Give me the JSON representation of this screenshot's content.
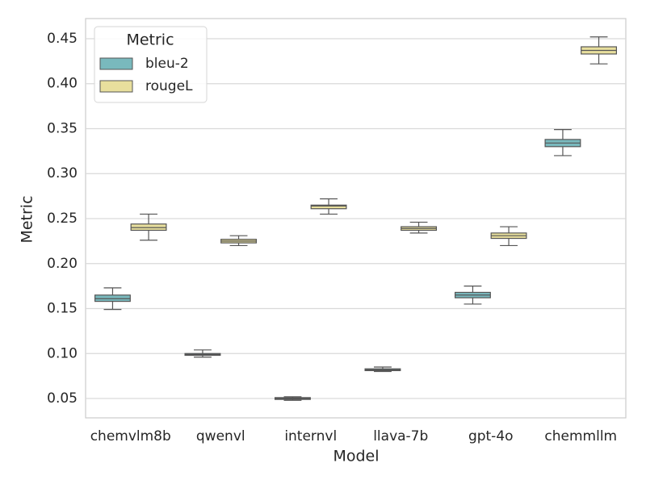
{
  "chart_data": {
    "type": "box",
    "x_label": "Model",
    "y_label": "Metric",
    "legend_title": "Metric",
    "categories": [
      "chemvlm8b",
      "qwenvl",
      "internvl",
      "llava-7b",
      "gpt-4o",
      "chemmllm"
    ],
    "series": [
      {
        "name": "bleu-2",
        "color": "#79b9bd",
        "min": [
          0.149,
          0.096,
          0.048,
          0.08,
          0.155,
          0.32
        ],
        "q1": [
          0.158,
          0.098,
          0.049,
          0.081,
          0.162,
          0.33
        ],
        "median": [
          0.161,
          0.099,
          0.05,
          0.082,
          0.165,
          0.334
        ],
        "q3": [
          0.165,
          0.1,
          0.051,
          0.083,
          0.168,
          0.338
        ],
        "max": [
          0.173,
          0.104,
          0.052,
          0.085,
          0.175,
          0.349
        ]
      },
      {
        "name": "rougeL",
        "color": "#e8df9d",
        "min": [
          0.226,
          0.22,
          0.255,
          0.234,
          0.22,
          0.422
        ],
        "q1": [
          0.237,
          0.223,
          0.261,
          0.237,
          0.228,
          0.433
        ],
        "median": [
          0.24,
          0.225,
          0.264,
          0.239,
          0.231,
          0.437
        ],
        "q3": [
          0.244,
          0.227,
          0.265,
          0.241,
          0.234,
          0.441
        ],
        "max": [
          0.255,
          0.231,
          0.272,
          0.246,
          0.241,
          0.452
        ]
      }
    ],
    "ylim": [
      0.0285,
      0.4724
    ],
    "yticks": [
      0.05,
      {
        "value": 0.1,
        "label": "0.10"
      },
      0.15,
      {
        "value": 0.2,
        "label": "0.20"
      },
      0.25,
      {
        "value": 0.3,
        "label": "0.30"
      },
      0.35,
      {
        "value": 0.4,
        "label": "0.40"
      },
      0.45
    ],
    "grid": true,
    "legend_position": "upper left"
  }
}
